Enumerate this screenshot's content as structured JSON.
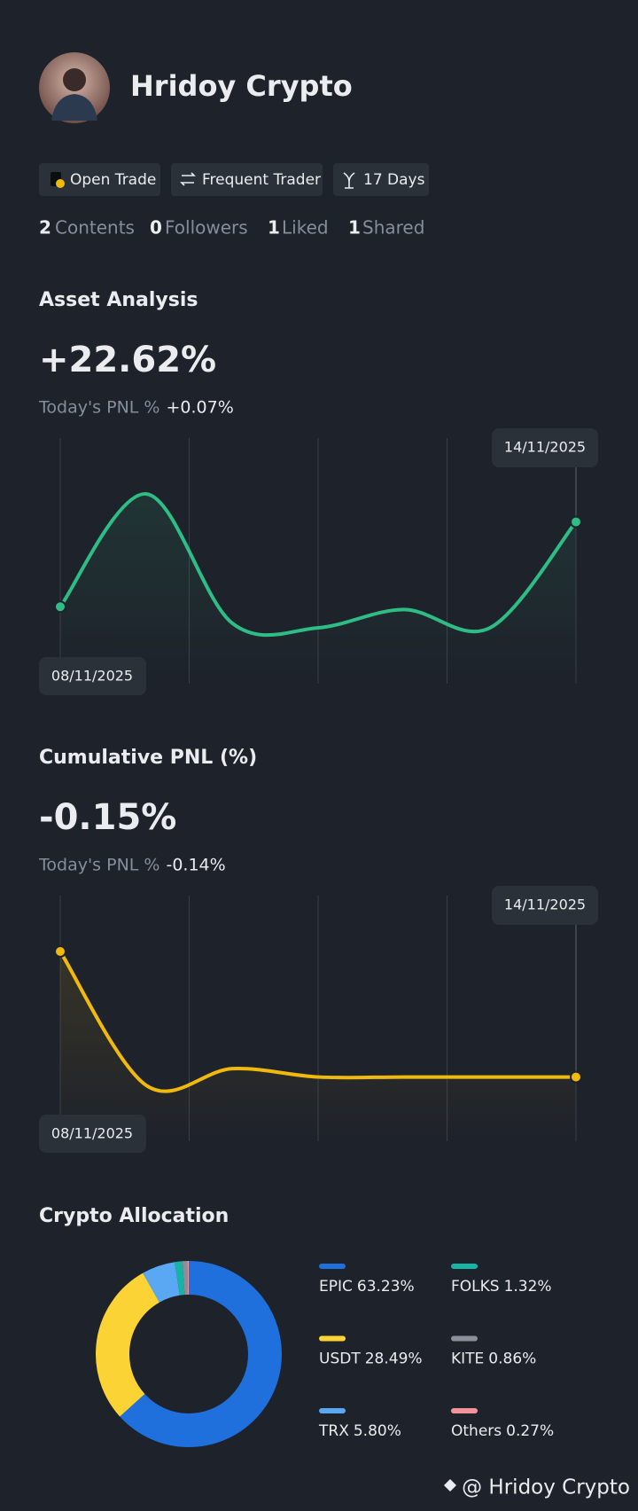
{
  "profile": {
    "name": "Hridoy Crypto",
    "badges": [
      "Open Trade",
      "Frequent Trader",
      "17 Days"
    ],
    "stats": [
      {
        "count": 2,
        "label": "Contents"
      },
      {
        "count": 0,
        "label": "Followers"
      },
      {
        "count": 1,
        "label": "Liked"
      },
      {
        "count": 1,
        "label": "Shared"
      }
    ]
  },
  "chart_data": [
    {
      "type": "line",
      "title": "Asset Analysis",
      "headline": "+22.62%",
      "subtitle": "Today's PNL %",
      "today_change": "+0.07%",
      "change_color": "#2ebd85",
      "color": "#2ebd85",
      "x": [
        "08/11/2025",
        null,
        null,
        null,
        null,
        null,
        "14/11/2025"
      ],
      "values": [
        4.5,
        28.6,
        1.0,
        0.0,
        3.9,
        0.0,
        22.62
      ]
    },
    {
      "type": "line",
      "title": "Cumulative PNL (%)",
      "headline": "-0.15%",
      "subtitle": "Today's PNL %",
      "today_change": "-0.14%",
      "change_color": "#f6465d",
      "color": "#f0b90b",
      "x": [
        "08/11/2025",
        null,
        null,
        null,
        null,
        null,
        "14/11/2025"
      ],
      "values": [
        0,
        -0.16,
        -0.14,
        -0.15,
        -0.15,
        -0.15,
        -0.15
      ]
    },
    {
      "type": "pie",
      "title": "Crypto Allocation",
      "categories": [
        "EPIC",
        "USDT",
        "TRX",
        "FOLKS",
        "KITE",
        "Others"
      ],
      "values": [
        63.23,
        28.49,
        5.8,
        1.32,
        0.86,
        0.27
      ],
      "value_labels": [
        "63.23%",
        "28.49%",
        "5.80%",
        "1.32%",
        "0.86%",
        "0.27%"
      ],
      "colors": [
        "#1f6fdc",
        "#fbd334",
        "#5aa7f3",
        "#17b3a6",
        "#8a8f99",
        "#f2939c"
      ]
    }
  ],
  "watermark": "@ Hridoy Crypto"
}
